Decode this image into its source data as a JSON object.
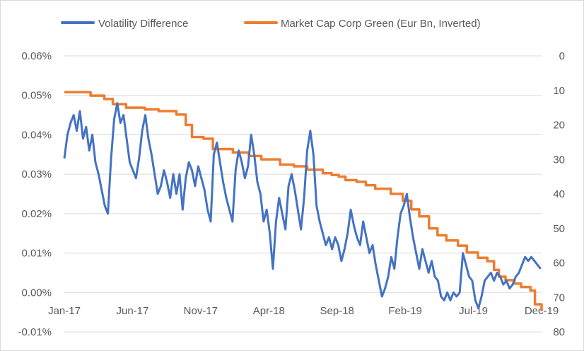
{
  "chart_data": {
    "type": "line",
    "title": "",
    "legend_position": "top",
    "grid": "horizontal",
    "x_ticks": [
      "Jan-17",
      "Jun-17",
      "Nov-17",
      "Apr-18",
      "Sep-18",
      "Feb-19",
      "Jul-19",
      "Dec-19"
    ],
    "y_left": {
      "ticks": [
        "0.06%",
        "0.05%",
        "0.04%",
        "0.03%",
        "0.02%",
        "0.01%",
        "0.00%",
        "-0.01%"
      ],
      "range": [
        -0.01,
        0.06
      ],
      "unit": "%"
    },
    "y_right": {
      "ticks": [
        "0",
        "10",
        "20",
        "30",
        "40",
        "50",
        "60",
        "70",
        "80"
      ],
      "range": [
        80,
        0
      ],
      "inverted": true
    },
    "series": [
      {
        "name": "Volatility Difference",
        "axis": "left",
        "color": "#4472C4",
        "points": [
          [
            "2017-01-01",
            0.034
          ],
          [
            "2017-01-08",
            0.04
          ],
          [
            "2017-01-15",
            0.043
          ],
          [
            "2017-01-22",
            0.045
          ],
          [
            "2017-01-29",
            0.041
          ],
          [
            "2017-02-05",
            0.046
          ],
          [
            "2017-02-12",
            0.039
          ],
          [
            "2017-02-19",
            0.042
          ],
          [
            "2017-02-26",
            0.036
          ],
          [
            "2017-03-05",
            0.04
          ],
          [
            "2017-03-12",
            0.033
          ],
          [
            "2017-03-19",
            0.03
          ],
          [
            "2017-03-26",
            0.026
          ],
          [
            "2017-04-02",
            0.022
          ],
          [
            "2017-04-09",
            0.02
          ],
          [
            "2017-04-16",
            0.034
          ],
          [
            "2017-04-23",
            0.044
          ],
          [
            "2017-04-30",
            0.048
          ],
          [
            "2017-05-07",
            0.043
          ],
          [
            "2017-05-14",
            0.045
          ],
          [
            "2017-05-21",
            0.039
          ],
          [
            "2017-05-28",
            0.033
          ],
          [
            "2017-06-04",
            0.031
          ],
          [
            "2017-06-11",
            0.029
          ],
          [
            "2017-06-18",
            0.034
          ],
          [
            "2017-06-25",
            0.041
          ],
          [
            "2017-07-02",
            0.045
          ],
          [
            "2017-07-09",
            0.039
          ],
          [
            "2017-07-16",
            0.035
          ],
          [
            "2017-07-23",
            0.03
          ],
          [
            "2017-07-30",
            0.025
          ],
          [
            "2017-08-06",
            0.027
          ],
          [
            "2017-08-13",
            0.031
          ],
          [
            "2017-08-20",
            0.028
          ],
          [
            "2017-08-27",
            0.024
          ],
          [
            "2017-09-03",
            0.03
          ],
          [
            "2017-09-10",
            0.025
          ],
          [
            "2017-09-17",
            0.03
          ],
          [
            "2017-09-24",
            0.021
          ],
          [
            "2017-10-01",
            0.029
          ],
          [
            "2017-10-08",
            0.033
          ],
          [
            "2017-10-15",
            0.031
          ],
          [
            "2017-10-22",
            0.027
          ],
          [
            "2017-10-29",
            0.032
          ],
          [
            "2017-11-05",
            0.029
          ],
          [
            "2017-11-12",
            0.026
          ],
          [
            "2017-11-19",
            0.021
          ],
          [
            "2017-11-26",
            0.018
          ],
          [
            "2017-12-03",
            0.035
          ],
          [
            "2017-12-10",
            0.038
          ],
          [
            "2017-12-17",
            0.033
          ],
          [
            "2017-12-24",
            0.028
          ],
          [
            "2017-12-31",
            0.024
          ],
          [
            "2018-01-07",
            0.021
          ],
          [
            "2018-01-14",
            0.018
          ],
          [
            "2018-01-21",
            0.031
          ],
          [
            "2018-01-28",
            0.036
          ],
          [
            "2018-02-04",
            0.033
          ],
          [
            "2018-02-11",
            0.029
          ],
          [
            "2018-02-18",
            0.032
          ],
          [
            "2018-02-25",
            0.04
          ],
          [
            "2018-03-04",
            0.035
          ],
          [
            "2018-03-11",
            0.028
          ],
          [
            "2018-03-18",
            0.025
          ],
          [
            "2018-03-25",
            0.018
          ],
          [
            "2018-04-01",
            0.021
          ],
          [
            "2018-04-08",
            0.015
          ],
          [
            "2018-04-15",
            0.006
          ],
          [
            "2018-04-22",
            0.018
          ],
          [
            "2018-04-29",
            0.024
          ],
          [
            "2018-05-06",
            0.02
          ],
          [
            "2018-05-13",
            0.016
          ],
          [
            "2018-05-20",
            0.027
          ],
          [
            "2018-05-27",
            0.03
          ],
          [
            "2018-06-03",
            0.026
          ],
          [
            "2018-06-10",
            0.021
          ],
          [
            "2018-06-17",
            0.016
          ],
          [
            "2018-06-24",
            0.024
          ],
          [
            "2018-07-01",
            0.036
          ],
          [
            "2018-07-08",
            0.041
          ],
          [
            "2018-07-15",
            0.035
          ],
          [
            "2018-07-22",
            0.022
          ],
          [
            "2018-07-29",
            0.018
          ],
          [
            "2018-08-05",
            0.015
          ],
          [
            "2018-08-12",
            0.012
          ],
          [
            "2018-08-19",
            0.014
          ],
          [
            "2018-08-26",
            0.011
          ],
          [
            "2018-09-02",
            0.014
          ],
          [
            "2018-09-09",
            0.012
          ],
          [
            "2018-09-16",
            0.008
          ],
          [
            "2018-09-23",
            0.011
          ],
          [
            "2018-09-30",
            0.015
          ],
          [
            "2018-10-07",
            0.021
          ],
          [
            "2018-10-14",
            0.017
          ],
          [
            "2018-10-21",
            0.014
          ],
          [
            "2018-10-28",
            0.012
          ],
          [
            "2018-11-04",
            0.018
          ],
          [
            "2018-11-11",
            0.014
          ],
          [
            "2018-11-18",
            0.01
          ],
          [
            "2018-11-25",
            0.012
          ],
          [
            "2018-12-02",
            0.007
          ],
          [
            "2018-12-09",
            0.003
          ],
          [
            "2018-12-16",
            -0.001
          ],
          [
            "2018-12-23",
            0.001
          ],
          [
            "2018-12-30",
            0.004
          ],
          [
            "2019-01-06",
            0.009
          ],
          [
            "2019-01-13",
            0.006
          ],
          [
            "2019-01-20",
            0.014
          ],
          [
            "2019-01-27",
            0.02
          ],
          [
            "2019-02-03",
            0.022
          ],
          [
            "2019-02-10",
            0.025
          ],
          [
            "2019-02-17",
            0.019
          ],
          [
            "2019-02-24",
            0.014
          ],
          [
            "2019-03-03",
            0.01
          ],
          [
            "2019-03-10",
            0.006
          ],
          [
            "2019-03-17",
            0.011
          ],
          [
            "2019-03-24",
            0.008
          ],
          [
            "2019-03-31",
            0.005
          ],
          [
            "2019-04-07",
            0.008
          ],
          [
            "2019-04-14",
            0.004
          ],
          [
            "2019-04-21",
            0.003
          ],
          [
            "2019-04-28",
            -0.001
          ],
          [
            "2019-05-05",
            -0.002
          ],
          [
            "2019-05-12",
            0.0
          ],
          [
            "2019-05-19",
            -0.002
          ],
          [
            "2019-05-26",
            0.0
          ],
          [
            "2019-06-02",
            -0.001
          ],
          [
            "2019-06-09",
            0.0
          ],
          [
            "2019-06-16",
            0.01
          ],
          [
            "2019-06-23",
            0.007
          ],
          [
            "2019-06-30",
            0.004
          ],
          [
            "2019-07-07",
            0.003
          ],
          [
            "2019-07-14",
            -0.002
          ],
          [
            "2019-07-21",
            -0.004
          ],
          [
            "2019-07-28",
            -0.001
          ],
          [
            "2019-08-04",
            0.003
          ],
          [
            "2019-08-11",
            0.004
          ],
          [
            "2019-08-18",
            0.005
          ],
          [
            "2019-08-25",
            0.003
          ],
          [
            "2019-09-01",
            0.005
          ],
          [
            "2019-09-08",
            0.004
          ],
          [
            "2019-09-15",
            0.002
          ],
          [
            "2019-09-22",
            0.003
          ],
          [
            "2019-09-29",
            0.001
          ],
          [
            "2019-10-06",
            0.002
          ],
          [
            "2019-10-13",
            0.004
          ],
          [
            "2019-10-20",
            0.005
          ],
          [
            "2019-10-27",
            0.007
          ],
          [
            "2019-11-03",
            0.009
          ],
          [
            "2019-11-10",
            0.008
          ],
          [
            "2019-11-17",
            0.009
          ],
          [
            "2019-11-24",
            0.008
          ],
          [
            "2019-12-01",
            0.007
          ],
          [
            "2019-12-08",
            0.006
          ]
        ]
      },
      {
        "name": "Market Cap Corp Green (Eur Bn, Inverted)",
        "axis": "right",
        "color": "#ED7D31",
        "points": [
          [
            "2017-01-01",
            10.5
          ],
          [
            "2017-03-01",
            11.5
          ],
          [
            "2017-04-01",
            12.5
          ],
          [
            "2017-04-20",
            14.0
          ],
          [
            "2017-05-20",
            15.0
          ],
          [
            "2017-07-01",
            15.5
          ],
          [
            "2017-08-01",
            16.0
          ],
          [
            "2017-09-10",
            17.0
          ],
          [
            "2017-10-01",
            20.0
          ],
          [
            "2017-10-15",
            23.5
          ],
          [
            "2017-11-10",
            24.0
          ],
          [
            "2017-12-01",
            27.0
          ],
          [
            "2018-01-15",
            28.0
          ],
          [
            "2018-02-20",
            29.0
          ],
          [
            "2018-03-20",
            30.0
          ],
          [
            "2018-05-01",
            31.5
          ],
          [
            "2018-06-01",
            32.0
          ],
          [
            "2018-07-01",
            33.0
          ],
          [
            "2018-08-05",
            34.0
          ],
          [
            "2018-08-25",
            34.5
          ],
          [
            "2018-09-10",
            35.0
          ],
          [
            "2018-09-25",
            36.0
          ],
          [
            "2018-10-20",
            36.5
          ],
          [
            "2018-11-10",
            37.5
          ],
          [
            "2018-12-01",
            38.5
          ],
          [
            "2019-01-05",
            40.0
          ],
          [
            "2019-02-01",
            42.0
          ],
          [
            "2019-02-20",
            44.5
          ],
          [
            "2019-03-10",
            46.5
          ],
          [
            "2019-04-01",
            50.0
          ],
          [
            "2019-04-20",
            52.0
          ],
          [
            "2019-05-10",
            53.5
          ],
          [
            "2019-06-05",
            55.0
          ],
          [
            "2019-06-25",
            57.0
          ],
          [
            "2019-07-20",
            58.5
          ],
          [
            "2019-08-10",
            59.5
          ],
          [
            "2019-08-25",
            62.0
          ],
          [
            "2019-09-05",
            64.0
          ],
          [
            "2019-09-20",
            65.0
          ],
          [
            "2019-10-10",
            66.0
          ],
          [
            "2019-10-25",
            67.0
          ],
          [
            "2019-11-15",
            68.0
          ],
          [
            "2019-11-25",
            72.0
          ],
          [
            "2019-12-10",
            74.0
          ]
        ]
      }
    ]
  }
}
